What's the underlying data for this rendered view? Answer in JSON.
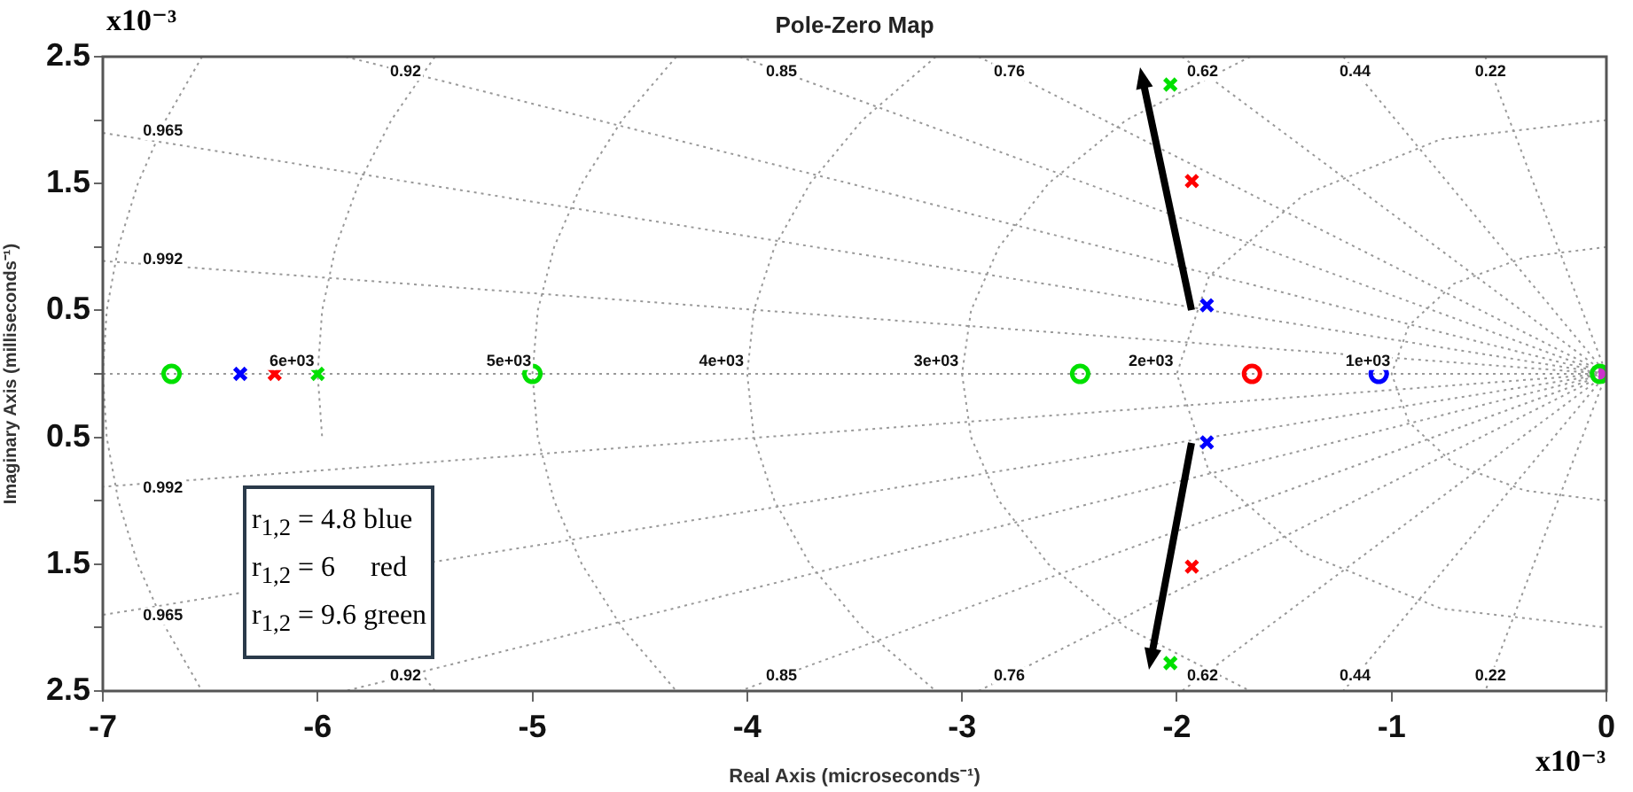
{
  "chart_data": {
    "type": "scatter",
    "title": "Pole-Zero Map",
    "xlabel": "Real Axis (microseconds⁻¹)",
    "ylabel": "Imaginary Axis (milliseconds⁻¹)",
    "xlim": [
      -7,
      0
    ],
    "xticks": [
      -7,
      -6,
      -5,
      -4,
      -3,
      -2,
      -1,
      0
    ],
    "ylim": [
      -2.5,
      2.5
    ],
    "yticks": [
      {
        "value": -2.5,
        "label": "2.5"
      },
      {
        "value": -2,
        "label": null
      },
      {
        "value": -1.5,
        "label": "1.5"
      },
      {
        "value": -1,
        "label": null
      },
      {
        "value": -0.5,
        "label": "0.5"
      },
      {
        "value": 0,
        "label": null
      },
      0.5,
      {
        "value": 1,
        "label": null
      },
      1.5,
      {
        "value": 2,
        "label": null
      },
      2.5
    ],
    "grid": false,
    "ref_lines": [
      {
        "axis": "y",
        "value": 0,
        "color": "#999999",
        "line_style": "dotted"
      }
    ],
    "series": [
      {
        "type": "line",
        "color": "#999999",
        "line_style": "dotted",
        "marker": "none",
        "x": [
          0,
          -0.38,
          -0.71,
          -0.92,
          -1,
          -0.92,
          -0.71,
          -0.38,
          0
        ],
        "values": [
          1,
          0.92,
          0.71,
          0.38,
          0,
          -0.38,
          -0.71,
          -0.92,
          -1
        ]
      },
      {
        "type": "line",
        "color": "#999999",
        "line_style": "dotted",
        "marker": "none",
        "x": [
          0,
          -0.77,
          -1.41,
          -1.85,
          -2,
          -1.85,
          -1.41,
          -0.77,
          0
        ],
        "values": [
          2,
          1.85,
          1.41,
          0.77,
          0,
          -0.77,
          -1.41,
          -1.85,
          -2
        ]
      },
      {
        "type": "line",
        "color": "#999999",
        "line_style": "dotted",
        "marker": "none",
        "x": [
          -1.658,
          -2.236,
          -2.598,
          -2.828,
          -2.958,
          -3,
          -2.958,
          -2.828,
          -2.598,
          -2.236,
          -1.658
        ],
        "values": [
          2.5,
          2,
          1.5,
          1,
          0.5,
          0,
          -0.5,
          -1,
          -1.5,
          -2,
          -2.5
        ]
      },
      {
        "type": "line",
        "color": "#999999",
        "line_style": "dotted",
        "marker": "none",
        "x": [
          -3.122,
          -3.464,
          -3.708,
          -3.873,
          -3.969,
          -4,
          -3.969,
          -3.873,
          -3.708,
          -3.464,
          -3.122
        ],
        "values": [
          2.5,
          2,
          1.5,
          1,
          0.5,
          0,
          -0.5,
          -1,
          -1.5,
          -2,
          -2.5
        ]
      },
      {
        "type": "line",
        "color": "#999999",
        "line_style": "dotted",
        "marker": "none",
        "x": [
          -4.33,
          -4.583,
          -4.77,
          -4.899,
          -4.975,
          -5,
          -4.975,
          -4.899,
          -4.77,
          -4.583,
          -4.33
        ],
        "values": [
          2.5,
          2,
          1.5,
          1,
          0.5,
          0,
          -0.5,
          -1,
          -1.5,
          -2,
          -2.5
        ]
      },
      {
        "type": "line",
        "color": "#999999",
        "line_style": "dotted",
        "marker": "none",
        "x": [
          -5.454,
          -5.657,
          -5.809,
          -5.916,
          -5.979,
          -6,
          -5.979,
          -5.916,
          -5.809,
          -5.521,
          -5.454
        ],
        "values": [
          2.5,
          2,
          1.5,
          1,
          0.5,
          0,
          -0.5,
          null,
          null,
          -2.35,
          -2.5
        ]
      },
      {
        "type": "line",
        "color": "#999999",
        "line_style": "dotted",
        "marker": "none",
        "x": [
          -6.538,
          -6.708,
          -6.837,
          -6.928,
          -6.982,
          -7,
          -6.982,
          -6.928,
          -6.837,
          -6.708,
          -6.538
        ],
        "values": [
          2.5,
          2,
          1.5,
          1,
          0.5,
          0,
          -0.5,
          -1,
          -1.5,
          -2,
          -2.5
        ]
      },
      {
        "type": "line",
        "color": "#999999",
        "line_style": "dotted",
        "marker": "none",
        "x": [
          -0.564,
          0,
          -0.564
        ],
        "values": [
          2.5,
          0,
          -2.5
        ]
      },
      {
        "type": "line",
        "color": "#999999",
        "line_style": "dotted",
        "marker": "none",
        "x": [
          -1.225,
          0,
          -1.225
        ],
        "values": [
          2.5,
          0,
          -2.5
        ]
      },
      {
        "type": "line",
        "color": "#999999",
        "line_style": "dotted",
        "marker": "none",
        "x": [
          -1.976,
          0,
          -1.976
        ],
        "values": [
          2.5,
          0,
          -2.5
        ]
      },
      {
        "type": "line",
        "color": "#999999",
        "line_style": "dotted",
        "marker": "none",
        "x": [
          -2.923,
          0,
          -2.923
        ],
        "values": [
          2.5,
          0,
          -2.5
        ]
      },
      {
        "type": "line",
        "color": "#999999",
        "line_style": "dotted",
        "marker": "none",
        "x": [
          -4.034,
          0,
          -4.034
        ],
        "values": [
          2.5,
          0,
          -2.5
        ]
      },
      {
        "type": "line",
        "color": "#999999",
        "line_style": "dotted",
        "marker": "none",
        "x": [
          -5.87,
          0,
          -5.87
        ],
        "values": [
          2.5,
          0,
          -2.5
        ]
      },
      {
        "type": "line",
        "color": "#999999",
        "line_style": "dotted",
        "marker": "none",
        "x": [
          -7,
          0,
          -7
        ],
        "values": [
          1.9,
          0,
          -1.9
        ]
      },
      {
        "type": "line",
        "color": "#999999",
        "line_style": "dotted",
        "marker": "none",
        "x": [
          -7,
          0,
          -7
        ],
        "values": [
          0.89,
          0,
          -0.89
        ]
      },
      {
        "type": "scatter",
        "color": "#0000ff",
        "marker": "cross",
        "x": [
          -6.36,
          -1.86,
          -1.86
        ],
        "values": [
          0,
          0.54,
          -0.54
        ]
      },
      {
        "type": "scatter",
        "color": "#0000ff",
        "marker": "circle",
        "x": [
          -1.06
        ],
        "values": [
          0
        ]
      },
      {
        "type": "scatter",
        "color": "#ff0000",
        "marker": "cross",
        "x": [
          -6.2,
          -1.93,
          -1.93
        ],
        "values": [
          0,
          1.52,
          -1.52
        ]
      },
      {
        "type": "scatter",
        "color": "#ff0000",
        "marker": "circle",
        "x": [
          -1.65
        ],
        "values": [
          0
        ]
      },
      {
        "type": "scatter",
        "color": "#00e000",
        "marker": "cross",
        "x": [
          -6.0,
          -2.03,
          -2.03
        ],
        "values": [
          0,
          2.28,
          -2.28
        ]
      },
      {
        "type": "scatter",
        "color": "#00e000",
        "marker": "circle",
        "x": [
          -6.68,
          -5.0,
          -2.45,
          -0.03
        ],
        "values": [
          0,
          0,
          0,
          0
        ]
      },
      {
        "type": "scatter",
        "color": "#cc33cc",
        "marker": "square",
        "x": [
          0
        ],
        "values": [
          0
        ]
      }
    ],
    "annotations": [
      "x10⁻³",
      "x10⁻³",
      "r$_{1,2}$ = 4.8 blue",
      "r$_{1,2}$ = 6     red",
      "r$_{1,2}$ = 9.6 green",
      {
        "text": "0.92",
        "x": -5.59,
        "y": 2.38
      },
      {
        "text": "0.85",
        "x": -3.84,
        "y": 2.38
      },
      {
        "text": "0.76",
        "x": -2.78,
        "y": 2.38
      },
      {
        "text": "0.62",
        "x": -1.88,
        "y": 2.38
      },
      {
        "text": "0.44",
        "x": -1.17,
        "y": 2.38
      },
      {
        "text": "0.22",
        "x": -0.54,
        "y": 2.38
      },
      {
        "text": "0.965",
        "x": -6.72,
        "y": 1.91
      },
      {
        "text": "0.992",
        "x": -6.72,
        "y": 0.9
      },
      {
        "text": "0.992",
        "x": -6.72,
        "y": -0.9
      },
      {
        "text": "0.965",
        "x": -6.72,
        "y": -1.91
      },
      {
        "text": "0.92",
        "x": -5.59,
        "y": -2.38
      },
      {
        "text": "0.85",
        "x": -3.84,
        "y": -2.38
      },
      {
        "text": "0.76",
        "x": -2.78,
        "y": -2.38
      },
      {
        "text": "0.62",
        "x": -1.88,
        "y": -2.38
      },
      {
        "text": "0.44",
        "x": -1.17,
        "y": -2.38
      },
      {
        "text": "0.22",
        "x": -0.54,
        "y": -2.38
      },
      {
        "text": "6e+03",
        "x": -6.12,
        "y": 0.1
      },
      {
        "text": "5e+03",
        "x": -5.11,
        "y": 0.1
      },
      {
        "text": "4e+03",
        "x": -4.12,
        "y": 0.1
      },
      {
        "text": "3e+03",
        "x": -3.12,
        "y": 0.1
      },
      {
        "text": "2e+03",
        "x": -2.12,
        "y": 0.1
      },
      {
        "text": "1e+03",
        "x": -1.11,
        "y": 0.1
      }
    ]
  }
}
